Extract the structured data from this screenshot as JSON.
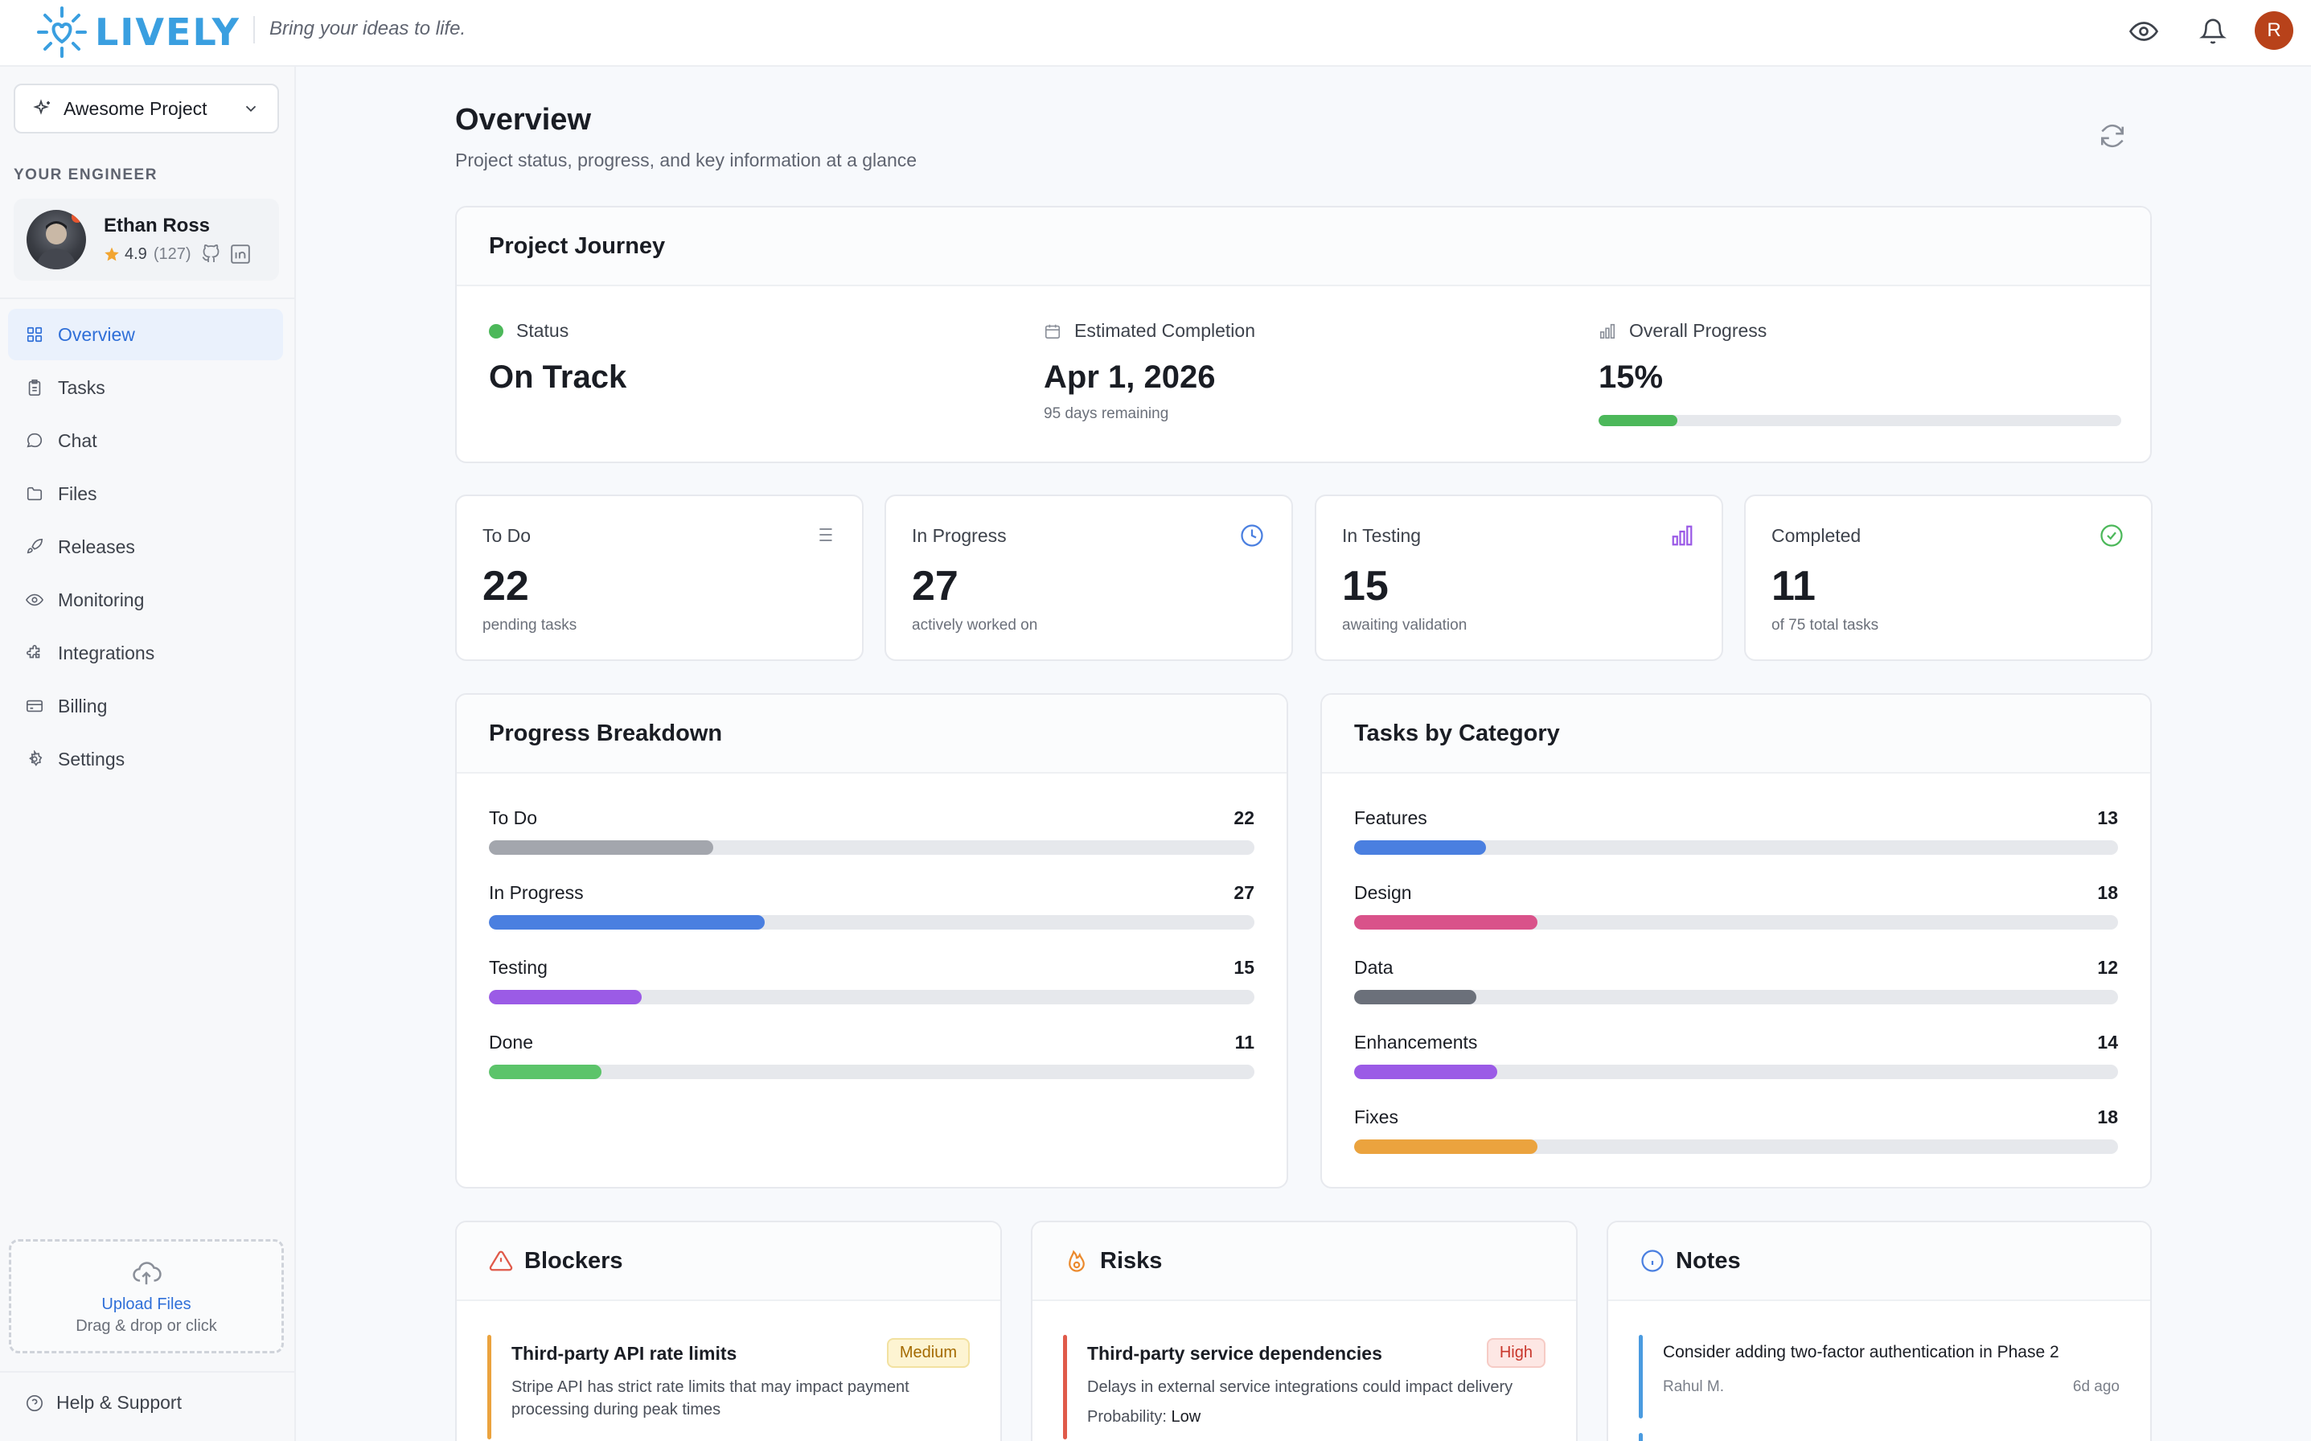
{
  "header": {
    "brand": "LIVELY",
    "tagline": "Bring your ideas to life.",
    "avatar_initial": "R"
  },
  "sidebar": {
    "project_name": "Awesome Project",
    "engineer_section": "YOUR ENGINEER",
    "engineer": {
      "name": "Ethan Ross",
      "rating": "4.9",
      "reviews": "(127)"
    },
    "nav": [
      {
        "label": "Overview",
        "icon": "grid-icon"
      },
      {
        "label": "Tasks",
        "icon": "clipboard-icon"
      },
      {
        "label": "Chat",
        "icon": "chat-icon"
      },
      {
        "label": "Files",
        "icon": "folder-icon"
      },
      {
        "label": "Releases",
        "icon": "rocket-icon"
      },
      {
        "label": "Monitoring",
        "icon": "eye-icon"
      },
      {
        "label": "Integrations",
        "icon": "puzzle-icon"
      },
      {
        "label": "Billing",
        "icon": "card-icon"
      },
      {
        "label": "Settings",
        "icon": "gear-icon"
      }
    ],
    "upload": {
      "title": "Upload Files",
      "subtitle": "Drag & drop or click"
    },
    "help": "Help & Support"
  },
  "main": {
    "title": "Overview",
    "subtitle": "Project status, progress, and key information at a glance",
    "journey": {
      "title": "Project Journey",
      "status_label": "Status",
      "status_value": "On Track",
      "completion_label": "Estimated Completion",
      "completion_value": "Apr 1, 2026",
      "completion_sub": "95 days remaining",
      "progress_label": "Overall Progress",
      "progress_value": "15%",
      "progress_fraction": 0.15
    },
    "stats": [
      {
        "label": "To Do",
        "value": "22",
        "sub": "pending tasks",
        "icon": "list-icon"
      },
      {
        "label": "In Progress",
        "value": "27",
        "sub": "actively worked on",
        "icon": "clock-icon"
      },
      {
        "label": "In Testing",
        "value": "15",
        "sub": "awaiting validation",
        "icon": "bar-chart-icon"
      },
      {
        "label": "Completed",
        "value": "11",
        "sub": "of 75 total tasks",
        "icon": "check-circle-icon"
      }
    ],
    "breakdown": {
      "title": "Progress Breakdown",
      "rows": [
        {
          "label": "To Do",
          "value": "22",
          "fraction": 0.293,
          "color": "#a3a6ad"
        },
        {
          "label": "In Progress",
          "value": "27",
          "fraction": 0.36,
          "color": "#4a7fe0"
        },
        {
          "label": "Testing",
          "value": "15",
          "fraction": 0.2,
          "color": "#9b5be6"
        },
        {
          "label": "Done",
          "value": "11",
          "fraction": 0.147,
          "color": "#5cc46a"
        }
      ]
    },
    "category": {
      "title": "Tasks by Category",
      "rows": [
        {
          "label": "Features",
          "value": "13",
          "fraction": 0.173,
          "color": "#4a7fe0"
        },
        {
          "label": "Design",
          "value": "18",
          "fraction": 0.24,
          "color": "#d9528a"
        },
        {
          "label": "Data",
          "value": "12",
          "fraction": 0.16,
          "color": "#6b707a"
        },
        {
          "label": "Enhancements",
          "value": "14",
          "fraction": 0.187,
          "color": "#9b5be6"
        },
        {
          "label": "Fixes",
          "value": "18",
          "fraction": 0.24,
          "color": "#eba33e"
        }
      ]
    },
    "blockers": {
      "title": "Blockers",
      "item_title": "Third-party API rate limits",
      "badge": "Medium",
      "desc": "Stripe API has strict rate limits that may impact payment processing during peak times"
    },
    "risks": {
      "title": "Risks",
      "item_title": "Third-party service dependencies",
      "badge": "High",
      "desc": "Delays in external service integrations could impact delivery",
      "prob_label": "Probability:",
      "prob_value": "Low"
    },
    "notes": {
      "title": "Notes",
      "item_title": "Consider adding two-factor authentication in Phase 2",
      "author": "Rahul M.",
      "time": "6d ago"
    }
  }
}
